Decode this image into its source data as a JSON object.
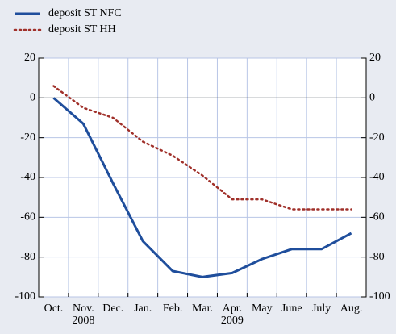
{
  "chart_data": {
    "type": "line",
    "categories": [
      "Oct.",
      "Nov.",
      "Dec.",
      "Jan.",
      "Feb.",
      "Mar.",
      "Apr.",
      "May",
      "June",
      "July",
      "Aug."
    ],
    "year_labels": [
      "2008",
      "2009"
    ],
    "series": [
      {
        "name": "deposit ST NFC",
        "color": "#1f4e9c",
        "style": "solid",
        "values": [
          0,
          -13,
          -43,
          -72,
          -87,
          -90,
          -88,
          -81,
          -76,
          -76,
          -68
        ]
      },
      {
        "name": "deposit ST HH",
        "color": "#a0302a",
        "style": "dotted",
        "values": [
          6,
          -5,
          -10,
          -22,
          -29,
          -39,
          -51,
          -51,
          -56,
          -56,
          -56
        ]
      }
    ],
    "ylim": [
      -100,
      20
    ],
    "yticks": [
      -100,
      -80,
      -60,
      -40,
      -20,
      0,
      20
    ],
    "y2lim": [
      -100,
      20
    ],
    "y2ticks": [
      -100,
      -80,
      -60,
      -40,
      -20,
      0,
      20
    ],
    "grid": true
  }
}
